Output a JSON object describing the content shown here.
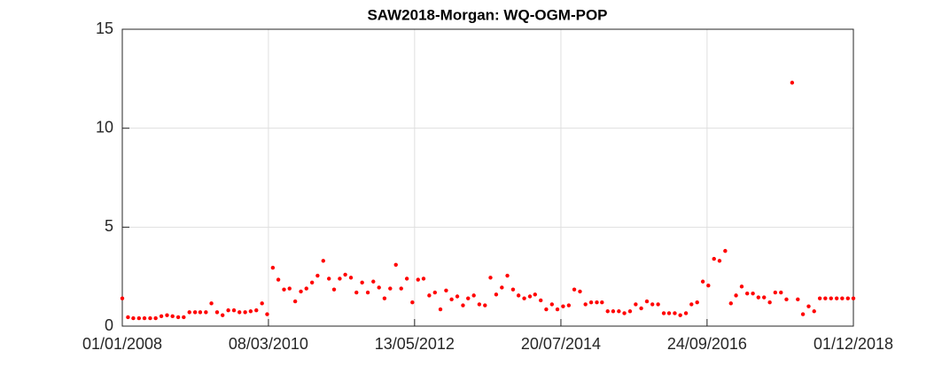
{
  "chart_data": {
    "type": "scatter",
    "title": "SAW2018-Morgan: WQ-OGM-POP",
    "color": "#ff0000",
    "grid": true,
    "xlim": [
      "2008-01-01",
      "2018-12-01"
    ],
    "xticks": [
      {
        "value": "2008-01-01",
        "label": "01/01/2008"
      },
      {
        "value": "2010-03-08",
        "label": "08/03/2010"
      },
      {
        "value": "2012-05-13",
        "label": "13/05/2012"
      },
      {
        "value": "2014-07-20",
        "label": "20/07/2014"
      },
      {
        "value": "2016-09-24",
        "label": "24/09/2016"
      },
      {
        "value": "2018-12-01",
        "label": "01/12/2018"
      }
    ],
    "ylim": [
      0,
      15
    ],
    "yticks": [
      0,
      5,
      10,
      15
    ],
    "x": [
      "2008-01-01",
      "2008-02-01",
      "2008-03-01",
      "2008-04-01",
      "2008-05-01",
      "2008-06-01",
      "2008-07-01",
      "2008-08-01",
      "2008-09-01",
      "2008-10-01",
      "2008-11-01",
      "2008-12-01",
      "2009-01-01",
      "2009-02-01",
      "2009-03-01",
      "2009-04-01",
      "2009-05-01",
      "2009-06-01",
      "2009-07-01",
      "2009-08-01",
      "2009-09-01",
      "2009-10-01",
      "2009-11-01",
      "2009-12-01",
      "2010-01-01",
      "2010-02-01",
      "2010-03-01",
      "2010-04-01",
      "2010-05-01",
      "2010-06-01",
      "2010-07-01",
      "2010-08-01",
      "2010-09-01",
      "2010-10-01",
      "2010-11-01",
      "2010-12-01",
      "2011-01-01",
      "2011-02-01",
      "2011-03-01",
      "2011-04-01",
      "2011-05-01",
      "2011-06-01",
      "2011-07-01",
      "2011-08-01",
      "2011-09-01",
      "2011-10-01",
      "2011-11-01",
      "2011-12-01",
      "2012-01-01",
      "2012-02-01",
      "2012-03-01",
      "2012-04-01",
      "2012-05-01",
      "2012-06-01",
      "2012-07-01",
      "2012-08-01",
      "2012-09-01",
      "2012-10-01",
      "2012-11-01",
      "2012-12-01",
      "2013-01-01",
      "2013-02-01",
      "2013-03-01",
      "2013-04-01",
      "2013-05-01",
      "2013-06-01",
      "2013-07-01",
      "2013-08-01",
      "2013-09-01",
      "2013-10-01",
      "2013-11-01",
      "2013-12-01",
      "2014-01-01",
      "2014-02-01",
      "2014-03-01",
      "2014-04-01",
      "2014-05-01",
      "2014-06-01",
      "2014-07-01",
      "2014-08-01",
      "2014-09-01",
      "2014-10-01",
      "2014-11-01",
      "2014-12-01",
      "2015-01-01",
      "2015-02-01",
      "2015-03-01",
      "2015-04-01",
      "2015-05-01",
      "2015-06-01",
      "2015-07-01",
      "2015-08-01",
      "2015-09-01",
      "2015-10-01",
      "2015-11-01",
      "2015-12-01",
      "2016-01-01",
      "2016-02-01",
      "2016-03-01",
      "2016-04-01",
      "2016-05-01",
      "2016-06-01",
      "2016-07-01",
      "2016-08-01",
      "2016-09-01",
      "2016-10-01",
      "2016-11-01",
      "2016-12-01",
      "2017-01-01",
      "2017-02-01",
      "2017-03-01",
      "2017-04-01",
      "2017-05-01",
      "2017-06-01",
      "2017-07-01",
      "2017-08-01",
      "2017-09-01",
      "2017-10-01",
      "2017-11-01",
      "2017-12-01",
      "2018-01-01",
      "2018-02-01",
      "2018-03-01",
      "2018-04-01",
      "2018-05-01",
      "2018-06-01",
      "2018-07-01",
      "2018-08-01",
      "2018-09-01",
      "2018-10-01",
      "2018-11-01",
      "2018-12-01"
    ],
    "values": [
      1.4,
      0.45,
      0.4,
      0.4,
      0.4,
      0.4,
      0.4,
      0.5,
      0.55,
      0.5,
      0.45,
      0.45,
      0.7,
      0.7,
      0.7,
      0.7,
      1.15,
      0.7,
      0.55,
      0.8,
      0.8,
      0.7,
      0.7,
      0.75,
      0.8,
      1.15,
      0.6,
      2.95,
      2.35,
      1.85,
      1.9,
      1.25,
      1.75,
      1.9,
      2.2,
      2.55,
      3.3,
      2.4,
      1.85,
      2.4,
      2.6,
      2.45,
      1.7,
      2.2,
      1.7,
      2.25,
      1.95,
      1.4,
      1.9,
      3.1,
      1.9,
      2.4,
      1.2,
      2.35,
      2.4,
      1.55,
      1.7,
      0.85,
      1.8,
      1.35,
      1.5,
      1.05,
      1.4,
      1.55,
      1.1,
      1.05,
      2.45,
      1.6,
      1.95,
      2.55,
      1.85,
      1.55,
      1.4,
      1.5,
      1.6,
      1.3,
      0.85,
      1.1,
      0.85,
      1.0,
      1.05,
      1.85,
      1.75,
      1.1,
      1.2,
      1.2,
      1.2,
      0.75,
      0.75,
      0.75,
      0.65,
      0.75,
      1.1,
      0.9,
      1.25,
      1.1,
      1.1,
      0.65,
      0.65,
      0.65,
      0.55,
      0.65,
      1.1,
      1.2,
      2.25,
      2.05,
      3.4,
      3.3,
      3.8,
      1.15,
      1.55,
      2.0,
      1.65,
      1.65,
      1.45,
      1.45,
      1.2,
      1.7,
      1.7,
      1.35,
      12.3,
      1.35,
      0.6,
      1.0,
      0.75,
      1.4,
      1.4,
      1.4,
      1.4,
      1.4,
      1.4,
      1.4
    ]
  }
}
